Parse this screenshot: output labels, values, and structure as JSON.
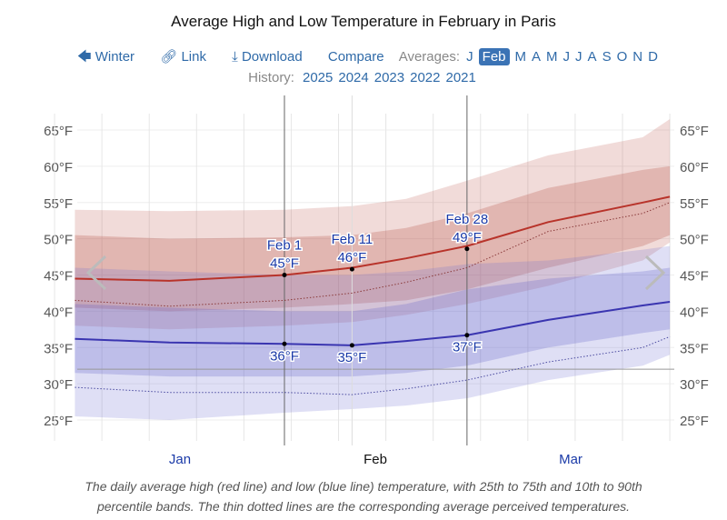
{
  "title": "Average High and Low Temperature in February in Paris",
  "nav": {
    "winter": "Winter",
    "link": "Link",
    "download": "Download",
    "compare": "Compare",
    "averages_label": "Averages:",
    "months": [
      "J",
      "Feb",
      "M",
      "A",
      "M",
      "J",
      "J",
      "A",
      "S",
      "O",
      "N",
      "D"
    ],
    "selected_month": "Feb",
    "icons": {
      "winter": "arrow-left-icon",
      "link": "link-icon",
      "download": "download-icon"
    }
  },
  "history": {
    "label": "History:",
    "years": [
      "2025",
      "2024",
      "2023",
      "2022",
      "2021"
    ]
  },
  "caption": {
    "line1": "The daily average high (red line) and low (blue line) temperature, with 25th to 75th and 10th to 90th",
    "line2": "percentile bands. The thin dotted lines are the corresponding average perceived temperatures."
  },
  "colors": {
    "high": "#b8332a",
    "low": "#3a35b0",
    "label": "#1a3aa8"
  },
  "chart_data": {
    "type": "line",
    "ylim": [
      25,
      65
    ],
    "yticks": [
      "25°F",
      "30°F",
      "35°F",
      "40°F",
      "45°F",
      "50°F",
      "55°F",
      "60°F",
      "65°F"
    ],
    "xlabels": [
      "Jan",
      "Feb",
      "Mar"
    ],
    "x": [
      "Jan 1",
      "Jan 15",
      "Feb 1",
      "Feb 11",
      "Feb 19",
      "Feb 28",
      "Mar 12",
      "Mar 26",
      "Mar 30"
    ],
    "series": [
      {
        "key": "high",
        "values": [
          44.5,
          44.2,
          45,
          46,
          47.3,
          49,
          52.3,
          55,
          55.8
        ]
      },
      {
        "key": "low",
        "values": [
          36.2,
          35.7,
          35.5,
          35.3,
          35.9,
          36.7,
          38.8,
          40.8,
          41.3
        ]
      },
      {
        "key": "high_perceived",
        "values": [
          41.5,
          40.7,
          41.5,
          42.5,
          44,
          46,
          51,
          53.5,
          55
        ]
      },
      {
        "key": "low_perceived",
        "values": [
          29.5,
          28.8,
          28.8,
          28.5,
          29.3,
          30.5,
          33,
          35,
          36.5
        ]
      }
    ],
    "bands": [
      {
        "key": "high_p10_p90",
        "lo": [
          38,
          37.5,
          38,
          38.5,
          39.5,
          41,
          43.5,
          47,
          49.5
        ],
        "hi": [
          54,
          53.8,
          54,
          54.5,
          55.5,
          58,
          61.5,
          64,
          66.5
        ]
      },
      {
        "key": "high_p25_p75",
        "lo": [
          40.5,
          40,
          40.5,
          41,
          41.5,
          43,
          46,
          49,
          50.5
        ],
        "hi": [
          50.5,
          50,
          50.2,
          50.5,
          51.5,
          53.5,
          57,
          59.5,
          60
        ]
      },
      {
        "key": "low_p10_p90",
        "lo": [
          25.5,
          25,
          26,
          26.5,
          27,
          28,
          30.5,
          32.5,
          34
        ],
        "hi": [
          46,
          45.5,
          45,
          45,
          45.5,
          46.5,
          47,
          48.5,
          49
        ]
      },
      {
        "key": "low_p25_p75",
        "lo": [
          31.5,
          31,
          31,
          31,
          31.5,
          32.5,
          35,
          37,
          37.5
        ],
        "hi": [
          41,
          40.5,
          40,
          40,
          41,
          43,
          44.5,
          45.5,
          46
        ]
      }
    ],
    "annotations": [
      {
        "date": "Feb 1",
        "high": "45°F",
        "low": "36°F",
        "hv": 45,
        "lv": 35.5
      },
      {
        "date": "Feb 11",
        "high": "46°F",
        "low": "35°F",
        "hv": 45.8,
        "lv": 35.3
      },
      {
        "date": "Feb 28",
        "high": "49°F",
        "low": "37°F",
        "hv": 48.6,
        "lv": 36.7
      }
    ],
    "freezing_line": 32,
    "grid": true
  }
}
